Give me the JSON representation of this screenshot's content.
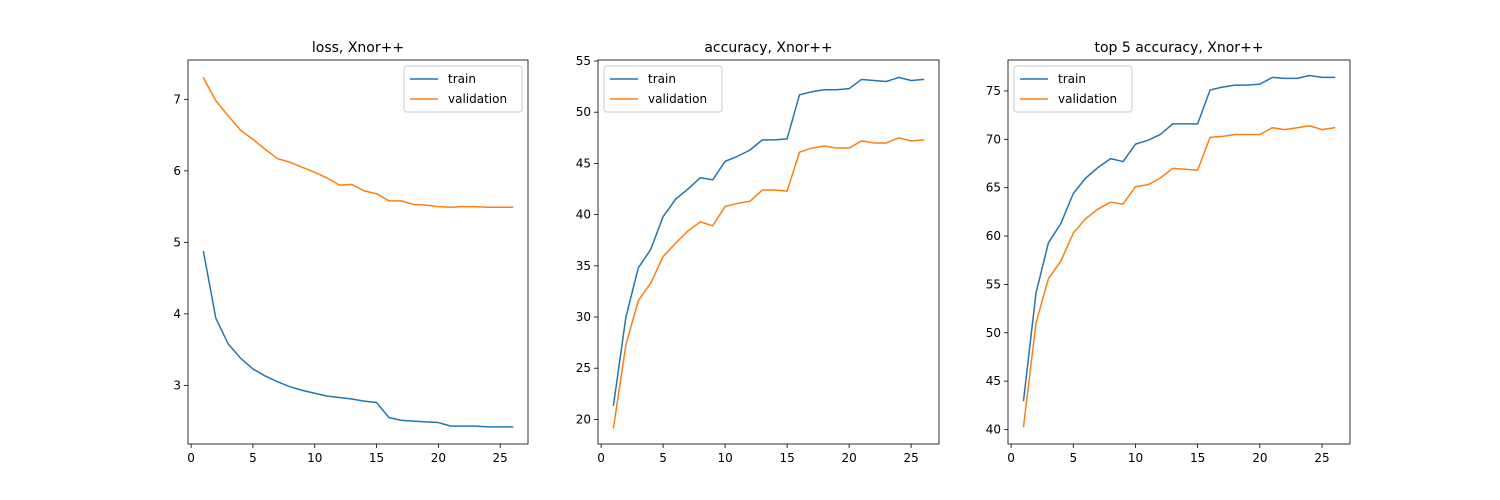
{
  "colors": {
    "train": "#1f77b4",
    "validation": "#ff7f0e",
    "axes": "#000000",
    "legend_border": "#cccccc"
  },
  "chart_data": [
    {
      "type": "line",
      "title": "loss, Xnor++",
      "xlabel": "",
      "ylabel": "",
      "xlim": [
        -0.25,
        27.25
      ],
      "ylim": [
        2.18,
        7.55
      ],
      "xticks": [
        0,
        5,
        10,
        15,
        20,
        25
      ],
      "yticks": [
        3,
        4,
        5,
        6,
        7
      ],
      "grid": false,
      "legend_position": "top-right",
      "x": [
        1,
        2,
        3,
        4,
        5,
        6,
        7,
        8,
        9,
        10,
        11,
        12,
        13,
        14,
        15,
        16,
        17,
        18,
        19,
        20,
        21,
        22,
        23,
        24,
        25,
        26
      ],
      "series": [
        {
          "name": "train",
          "values": [
            4.87,
            3.94,
            3.58,
            3.38,
            3.23,
            3.13,
            3.05,
            2.98,
            2.93,
            2.89,
            2.85,
            2.83,
            2.81,
            2.78,
            2.76,
            2.55,
            2.51,
            2.5,
            2.49,
            2.48,
            2.43,
            2.43,
            2.43,
            2.42,
            2.42,
            2.42
          ]
        },
        {
          "name": "validation",
          "values": [
            7.3,
            6.98,
            6.77,
            6.57,
            6.44,
            6.3,
            6.17,
            6.12,
            6.05,
            5.98,
            5.9,
            5.8,
            5.81,
            5.72,
            5.68,
            5.58,
            5.58,
            5.53,
            5.52,
            5.5,
            5.49,
            5.5,
            5.5,
            5.49,
            5.49,
            5.49
          ]
        }
      ]
    },
    {
      "type": "line",
      "title": "accuracy, Xnor++",
      "xlabel": "",
      "ylabel": "",
      "xlim": [
        -0.25,
        27.25
      ],
      "ylim": [
        17.6,
        55.1
      ],
      "xticks": [
        0,
        5,
        10,
        15,
        20,
        25
      ],
      "yticks": [
        20,
        25,
        30,
        35,
        40,
        45,
        50,
        55
      ],
      "grid": false,
      "legend_position": "top-left",
      "x": [
        1,
        2,
        3,
        4,
        5,
        6,
        7,
        8,
        9,
        10,
        11,
        12,
        13,
        14,
        15,
        16,
        17,
        18,
        19,
        20,
        21,
        22,
        23,
        24,
        25,
        26
      ],
      "series": [
        {
          "name": "train",
          "values": [
            21.4,
            30.0,
            34.8,
            36.6,
            39.8,
            41.5,
            42.5,
            43.6,
            43.4,
            45.2,
            45.7,
            46.3,
            47.3,
            47.3,
            47.4,
            51.7,
            52.0,
            52.2,
            52.2,
            52.3,
            53.2,
            53.1,
            53.0,
            53.4,
            53.1,
            53.2
          ]
        },
        {
          "name": "validation",
          "values": [
            19.2,
            27.3,
            31.6,
            33.3,
            35.9,
            37.2,
            38.4,
            39.3,
            38.9,
            40.8,
            41.1,
            41.3,
            42.4,
            42.4,
            42.3,
            46.1,
            46.5,
            46.7,
            46.5,
            46.5,
            47.2,
            47.0,
            47.0,
            47.5,
            47.2,
            47.3
          ]
        }
      ]
    },
    {
      "type": "line",
      "title": "top 5 accuracy, Xnor++",
      "xlabel": "",
      "ylabel": "",
      "xlim": [
        -0.25,
        27.25
      ],
      "ylim": [
        38.5,
        78.2
      ],
      "xticks": [
        0,
        5,
        10,
        15,
        20,
        25
      ],
      "yticks": [
        40,
        45,
        50,
        55,
        60,
        65,
        70,
        75
      ],
      "grid": false,
      "legend_position": "top-left",
      "x": [
        1,
        2,
        3,
        4,
        5,
        6,
        7,
        8,
        9,
        10,
        11,
        12,
        13,
        14,
        15,
        16,
        17,
        18,
        19,
        20,
        21,
        22,
        23,
        24,
        25,
        26
      ],
      "series": [
        {
          "name": "train",
          "values": [
            43.0,
            54.1,
            59.3,
            61.3,
            64.4,
            66.0,
            67.1,
            68.0,
            67.7,
            69.5,
            69.9,
            70.5,
            71.6,
            71.6,
            71.6,
            75.1,
            75.4,
            75.6,
            75.6,
            75.7,
            76.4,
            76.3,
            76.3,
            76.6,
            76.4,
            76.4
          ]
        },
        {
          "name": "validation",
          "values": [
            40.3,
            51.0,
            55.6,
            57.4,
            60.3,
            61.8,
            62.8,
            63.5,
            63.3,
            65.1,
            65.3,
            66.0,
            67.0,
            66.9,
            66.8,
            70.2,
            70.3,
            70.5,
            70.5,
            70.5,
            71.2,
            71.0,
            71.2,
            71.4,
            71.0,
            71.2
          ]
        }
      ]
    }
  ]
}
